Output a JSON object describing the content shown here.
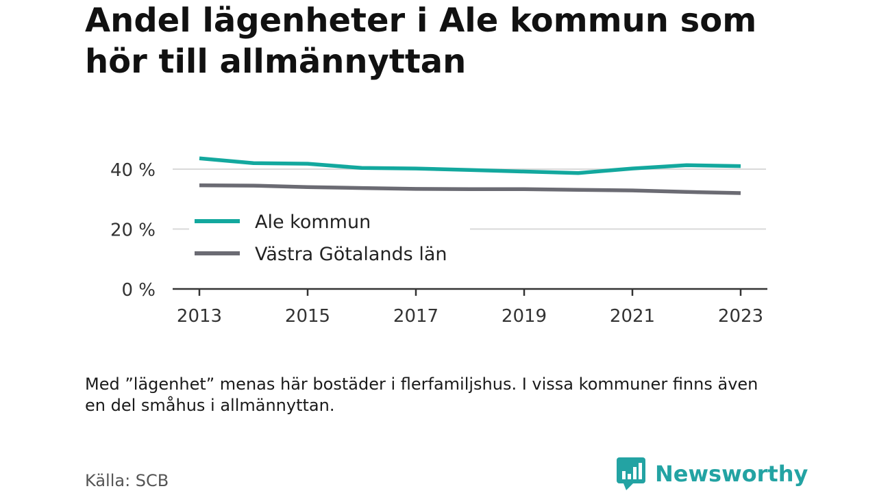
{
  "title": "Andel lägenheter i Ale kommun som hör till allmännyttan",
  "note": "Med ”lägenhet” menas här bostäder i flerfamiljshus. I vissa kommuner finns även en del småhus i allmännyttan.",
  "source": "Källa: SCB",
  "brand": {
    "name": "Newsworthy",
    "color": "#23a3a3",
    "icon": "newsworthy-logo-icon"
  },
  "chart_data": {
    "type": "line",
    "title": "Andel lägenheter i Ale kommun som hör till allmännyttan",
    "x": [
      2013,
      2014,
      2015,
      2016,
      2017,
      2018,
      2019,
      2020,
      2021,
      2022,
      2023
    ],
    "x_ticks": [
      2013,
      2015,
      2017,
      2019,
      2021,
      2023
    ],
    "y_ticks": [
      0,
      20,
      40
    ],
    "y_tick_labels": [
      "0 %",
      "20 %",
      "40 %"
    ],
    "ylim": [
      0,
      40
    ],
    "grid": true,
    "legend_position": "bottom-left",
    "series": [
      {
        "name": "Ale kommun",
        "color": "#13a89e",
        "values": [
          43.6,
          42.0,
          41.8,
          40.4,
          40.2,
          39.7,
          39.2,
          38.7,
          40.2,
          41.3,
          41.0
        ]
      },
      {
        "name": "Västra Götalands län",
        "color": "#6b6b73",
        "values": [
          34.6,
          34.5,
          34.0,
          33.7,
          33.4,
          33.3,
          33.3,
          33.1,
          32.9,
          32.4,
          32.0
        ]
      }
    ]
  }
}
